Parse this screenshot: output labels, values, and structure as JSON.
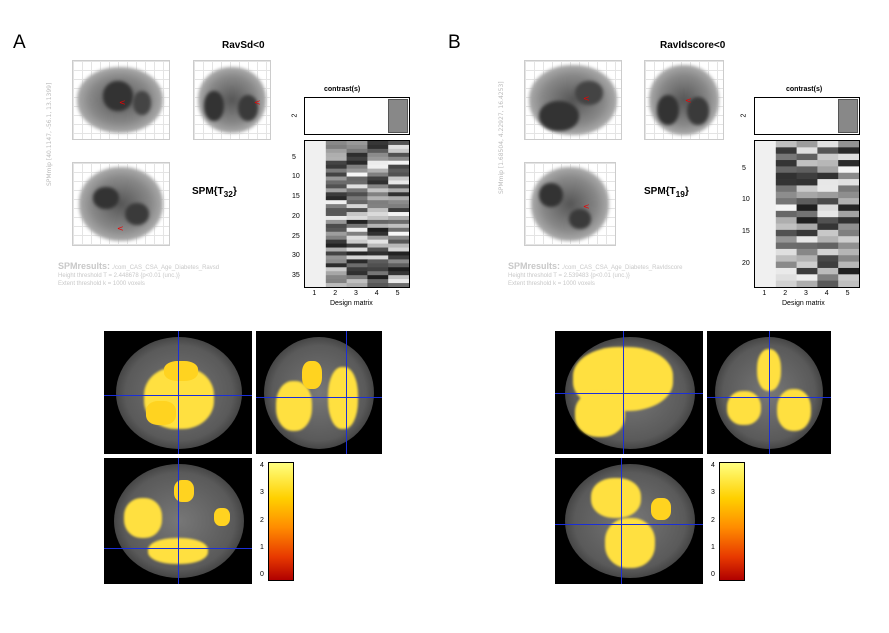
{
  "panels": [
    {
      "letter": "A",
      "title": "RavSd<0",
      "spm_label": "SPM{T",
      "spm_sub": "32",
      "spm_close": "}",
      "vertical_label": "SPMmip",
      "vertical_coords": "[40.1147, -56.1, 13.1399]",
      "footer_title": "SPMresults:",
      "footer_path": "./com_CAS_CSA_Age_Diabetes_Ravsd",
      "footer_line2": "Height threshold T = 2.448678  {p<0.01 (unc.)}",
      "footer_line3": "Extent threshold k = 1000 voxels",
      "contrast_label": "contrast(s)",
      "contrast_tick": "2",
      "design_label": "Design matrix",
      "x_ticks": [
        "1",
        "2",
        "3",
        "4",
        "5"
      ],
      "y_ticks": [
        "5",
        "10",
        "15",
        "20",
        "25",
        "30",
        "35"
      ],
      "colorbar_ticks": [
        "4",
        "3",
        "2",
        "1",
        "0"
      ]
    },
    {
      "letter": "B",
      "title": "RavIdscore<0",
      "spm_label": "SPM{T",
      "spm_sub": "19",
      "spm_close": "}",
      "vertical_label": "SPMmip",
      "vertical_coords": "[1.68504, 4.22927, 16.4253]",
      "footer_title": "SPMresults:",
      "footer_path": "./com_CAS_CSA_Age_Diabetes_RavIdscore",
      "footer_line2": "Height threshold T = 2.539483  {p<0.01 (unc.)}",
      "footer_line3": "Extent threshold k = 1000 voxels",
      "contrast_label": "contrast(s)",
      "contrast_tick": "2",
      "design_label": "Design matrix",
      "x_ticks": [
        "1",
        "2",
        "3",
        "4",
        "5"
      ],
      "y_ticks": [
        "5",
        "10",
        "15",
        "20"
      ],
      "colorbar_ticks": [
        "4",
        "3",
        "2",
        "1",
        "0"
      ]
    }
  ],
  "colors": {
    "activation": "#ffe040",
    "crosshair": "#1b2fd8",
    "cursor": "#e00000"
  }
}
